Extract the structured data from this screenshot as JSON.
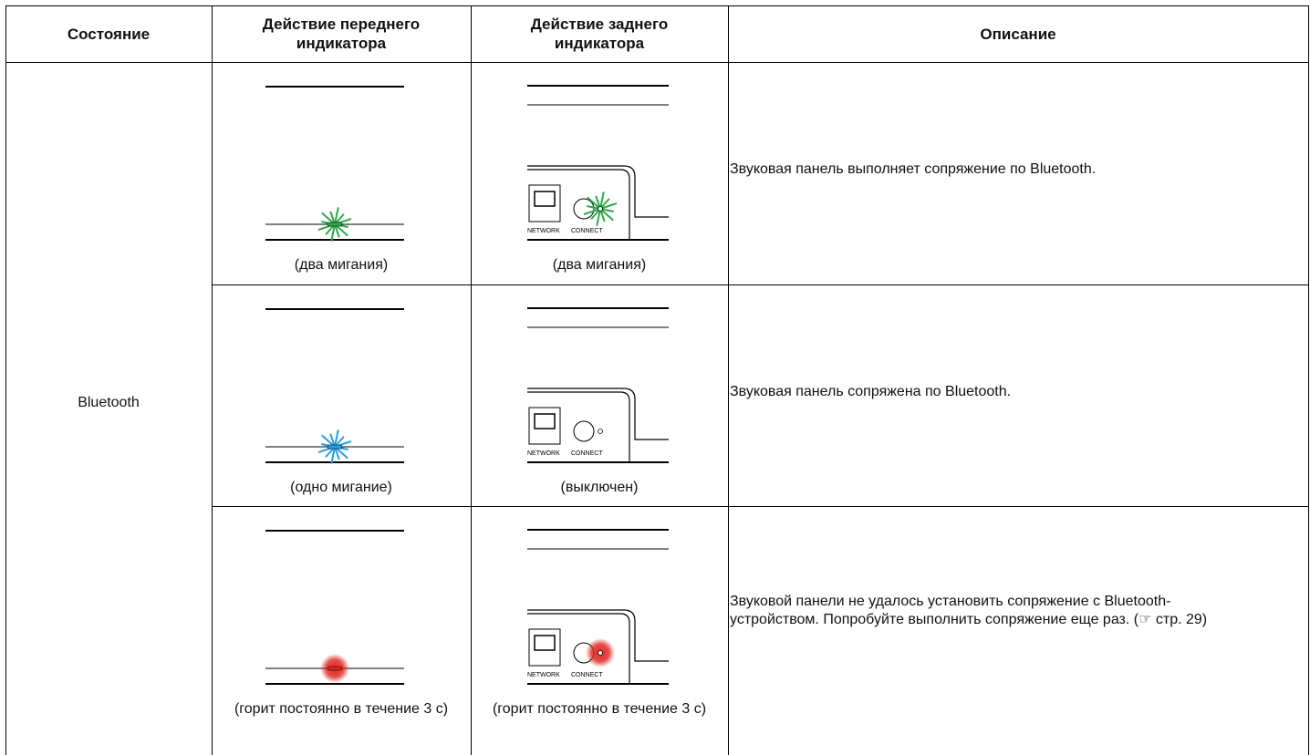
{
  "table": {
    "header": [
      "Состояние",
      "Действие переднего индикатора",
      "Действие заднего индикатора",
      "Описание"
    ],
    "state": "Bluetooth",
    "rows": [
      {
        "front_caption": "(два мигания)",
        "rear_caption": "(два мигания)",
        "description": "Звуковая панель выполняет сопряжение по Bluetooth."
      },
      {
        "front_caption": "(одно мигание)",
        "rear_caption": "(выключен)",
        "description": "Звуковая панель сопряжена по Bluetooth."
      },
      {
        "front_caption": "(горит постоянно в течение 3 с)",
        "rear_caption": "(горит постоянно в течение 3 с)",
        "description": "Звуковой панели не удалось установить сопряжение с Bluetooth-устройством. Попробуйте выполнить сопряжение еще раз.  (☞ стр. 29)"
      }
    ]
  },
  "rear_panel_labels": {
    "network": "NETWORK",
    "connect": "CONNECT"
  }
}
